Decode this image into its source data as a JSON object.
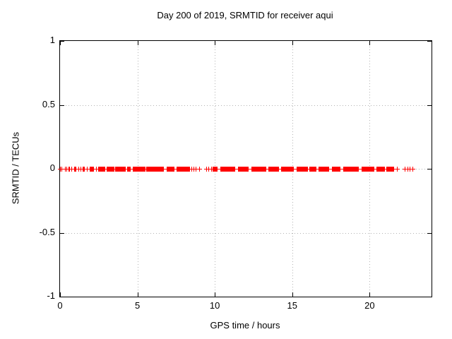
{
  "page": {
    "background": "#ffffff"
  },
  "chart_data": {
    "type": "scatter",
    "title": "Day 200 of 2019, SRMTID for receiver aqui",
    "xlabel": "GPS time / hours",
    "ylabel": "SRMTID / TECUs",
    "xlim": [
      0,
      24
    ],
    "ylim": [
      -1,
      1
    ],
    "xticks": [
      {
        "value": 0,
        "label": "0"
      },
      {
        "value": 5,
        "label": "5"
      },
      {
        "value": 10,
        "label": "10"
      },
      {
        "value": 15,
        "label": "15"
      },
      {
        "value": 20,
        "label": "20"
      }
    ],
    "yticks": [
      {
        "value": 1,
        "label": "1"
      },
      {
        "value": 0.5,
        "label": "0.5"
      },
      {
        "value": 0,
        "label": "0"
      },
      {
        "value": -0.5,
        "label": "-0.5"
      },
      {
        "value": -1,
        "label": "-1"
      }
    ],
    "grid": true,
    "grid_style": "dotted",
    "grid_color": "#b3b3b3",
    "axis_color": "#000000",
    "legend": "none",
    "series": [
      {
        "name": "SRMTID",
        "marker": "plus",
        "color": "#ff0000",
        "y_value": 0,
        "x_cluster_step": 0.04,
        "x_clusters": [
          [
            0.55,
            0.66
          ],
          [
            0.95,
            1.06
          ],
          [
            1.5,
            1.6
          ],
          [
            1.95,
            2.2
          ],
          [
            2.5,
            2.9
          ],
          [
            3.05,
            3.5
          ],
          [
            3.6,
            4.2
          ],
          [
            4.38,
            4.55
          ],
          [
            4.7,
            5.5
          ],
          [
            5.6,
            6.7
          ],
          [
            6.9,
            7.4
          ],
          [
            7.55,
            8.35
          ],
          [
            9.9,
            10.15
          ],
          [
            10.4,
            11.3
          ],
          [
            11.5,
            12.2
          ],
          [
            12.4,
            13.3
          ],
          [
            13.5,
            14.1
          ],
          [
            14.3,
            15.1
          ],
          [
            15.3,
            16.0
          ],
          [
            16.15,
            16.55
          ],
          [
            16.7,
            17.4
          ],
          [
            17.6,
            18.1
          ],
          [
            18.3,
            19.3
          ],
          [
            19.5,
            20.3
          ],
          [
            20.45,
            21.0
          ],
          [
            21.1,
            21.6
          ]
        ],
        "x_singles": [
          0.02,
          0.1,
          0.32,
          0.42,
          0.75,
          1.2,
          1.35,
          1.75,
          2.33,
          8.5,
          8.65,
          8.8,
          9.0,
          9.45,
          9.6,
          9.78,
          21.8,
          22.3,
          22.45,
          22.6,
          22.8
        ]
      }
    ]
  }
}
